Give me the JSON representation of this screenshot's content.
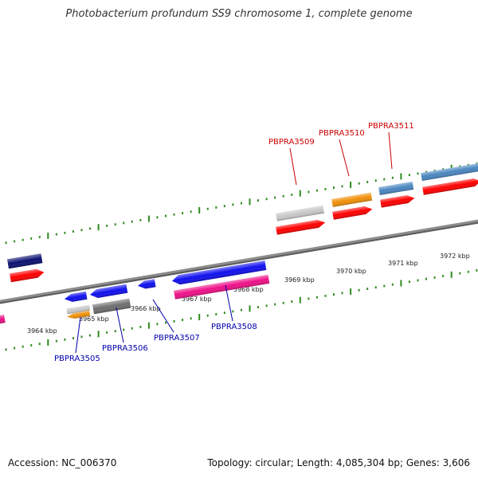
{
  "header": {
    "title": "Photobacterium profundum SS9 chromosome 1, complete genome"
  },
  "footer": {
    "accession": "Accession: NC_006370",
    "summary": "Topology: circular; Length: 4,085,304 bp; Genes: 3,606"
  },
  "colors": {
    "backbone": "#8c8c8c",
    "tick": "#2e8b1e",
    "forward_label": "#cc0000",
    "reverse_label": "#0000aa",
    "red": "#ff0000",
    "navy": "#0b1070",
    "blue": "#1010ee",
    "magenta": "#ee1188",
    "gray": "#6e6e6e",
    "silver": "#c8c8c8",
    "orange": "#f0900a",
    "steelblue": "#4a86c0"
  },
  "scale": {
    "ticks": [
      "3964 kbp",
      "3965 kbp",
      "3966 kbp",
      "3967 kbp",
      "3968 kbp",
      "3969 kbp",
      "3970 kbp",
      "3971 kbp",
      "3972 kbp"
    ]
  },
  "gene_labels": {
    "forward": [
      "PBPRA3509",
      "PBPRA3510",
      "PBPRA3511"
    ],
    "reverse": [
      "PBPRA3505",
      "PBPRA3506",
      "PBPRA3507",
      "PBPRA3508"
    ]
  }
}
